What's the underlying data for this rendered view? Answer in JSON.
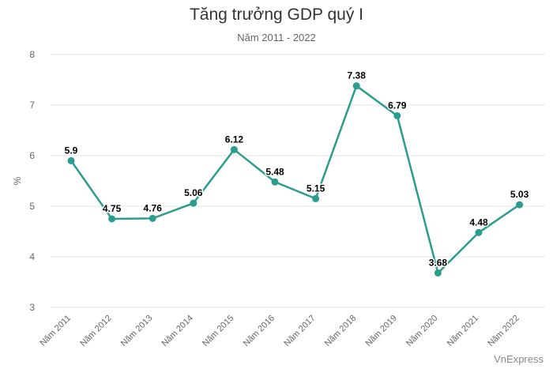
{
  "chart_data": {
    "type": "line",
    "title": "Tăng trưởng GDP quý I",
    "subtitle": "Năm 2011 - 2022",
    "ylabel": "%",
    "xlabel": "",
    "ylim": [
      3,
      8
    ],
    "yticks": [
      3,
      4,
      5,
      6,
      7,
      8
    ],
    "grid": true,
    "categories": [
      "Năm 2011",
      "Năm 2012",
      "Năm 2013",
      "Năm 2014",
      "Năm 2015",
      "Năm 2016",
      "Năm 2017",
      "Năm 2018",
      "Năm 2019",
      "Năm 2020",
      "Năm 2021",
      "Năm 2022"
    ],
    "values": [
      5.9,
      4.75,
      4.76,
      5.06,
      6.12,
      5.48,
      5.15,
      7.38,
      6.79,
      3.68,
      4.48,
      5.03
    ],
    "data_labels": [
      "5.9",
      "4.75",
      "4.76",
      "5.06",
      "6.12",
      "5.48",
      "5.15",
      "7.38",
      "6.79",
      "3.68",
      "4.48",
      "5.03"
    ],
    "line_color": "#2a9d8f",
    "grid_color": "#e6e6e6"
  },
  "watermark": "VnExpress"
}
